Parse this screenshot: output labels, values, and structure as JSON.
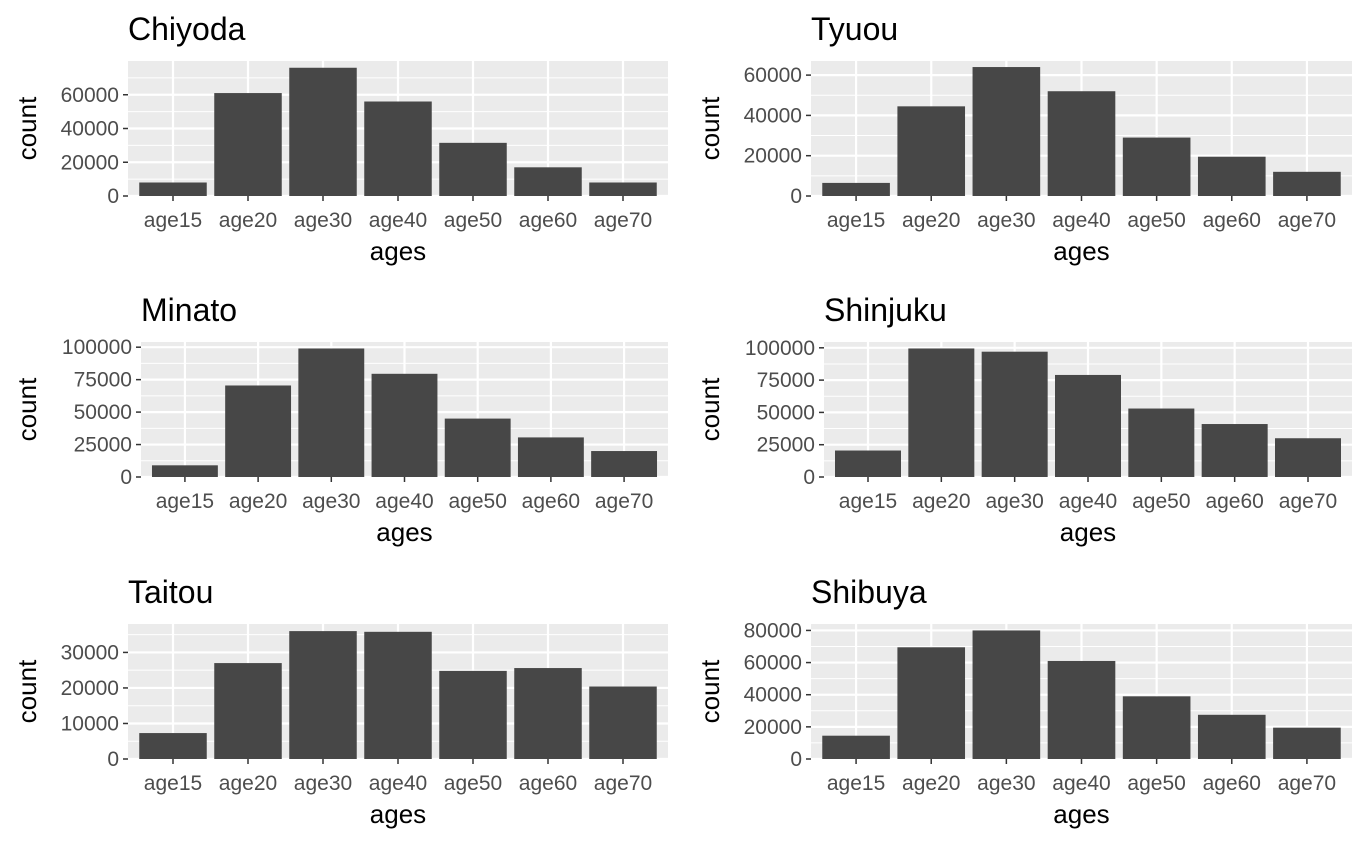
{
  "chart_data": [
    {
      "type": "bar",
      "title": "Chiyoda",
      "xlabel": "ages",
      "ylabel": "count",
      "categories": [
        "age15",
        "age20",
        "age30",
        "age40",
        "age50",
        "age60",
        "age70"
      ],
      "values": [
        8000,
        61000,
        76000,
        56000,
        31500,
        17000,
        8000
      ],
      "ylim": [
        0,
        80000
      ],
      "yticks": [
        0,
        20000,
        40000,
        60000
      ],
      "ytick_labels": [
        "0",
        "20000",
        "40000",
        "60000"
      ]
    },
    {
      "type": "bar",
      "title": "Tyuou",
      "xlabel": "ages",
      "ylabel": "count",
      "categories": [
        "age15",
        "age20",
        "age30",
        "age40",
        "age50",
        "age60",
        "age70"
      ],
      "values": [
        6500,
        44500,
        64000,
        52000,
        29000,
        19500,
        12000
      ],
      "ylim": [
        0,
        67000
      ],
      "yticks": [
        0,
        20000,
        40000,
        60000
      ],
      "ytick_labels": [
        "0",
        "20000",
        "40000",
        "60000"
      ]
    },
    {
      "type": "bar",
      "title": "Minato",
      "xlabel": "ages",
      "ylabel": "count",
      "categories": [
        "age15",
        "age20",
        "age30",
        "age40",
        "age50",
        "age60",
        "age70"
      ],
      "values": [
        9000,
        70500,
        99000,
        79500,
        45000,
        30500,
        20000
      ],
      "ylim": [
        0,
        104000
      ],
      "yticks": [
        0,
        25000,
        50000,
        75000,
        100000
      ],
      "ytick_labels": [
        "0",
        "25000",
        "50000",
        "75000",
        "100000"
      ]
    },
    {
      "type": "bar",
      "title": "Shinjuku",
      "xlabel": "ages",
      "ylabel": "count",
      "categories": [
        "age15",
        "age20",
        "age30",
        "age40",
        "age50",
        "age60",
        "age70"
      ],
      "values": [
        20500,
        99500,
        97000,
        79000,
        53000,
        41000,
        30000
      ],
      "ylim": [
        0,
        104500
      ],
      "yticks": [
        0,
        25000,
        50000,
        75000,
        100000
      ],
      "ytick_labels": [
        "0",
        "25000",
        "50000",
        "75000",
        "100000"
      ]
    },
    {
      "type": "bar",
      "title": "Taitou",
      "xlabel": "ages",
      "ylabel": "count",
      "categories": [
        "age15",
        "age20",
        "age30",
        "age40",
        "age50",
        "age60",
        "age70"
      ],
      "values": [
        7300,
        27000,
        36000,
        35800,
        24800,
        25600,
        20400
      ],
      "ylim": [
        0,
        38000
      ],
      "yticks": [
        0,
        10000,
        20000,
        30000
      ],
      "ytick_labels": [
        "0",
        "10000",
        "20000",
        "30000"
      ]
    },
    {
      "type": "bar",
      "title": "Shibuya",
      "xlabel": "ages",
      "ylabel": "count",
      "categories": [
        "age15",
        "age20",
        "age30",
        "age40",
        "age50",
        "age60",
        "age70"
      ],
      "values": [
        14500,
        69500,
        80000,
        61000,
        39000,
        27500,
        19500
      ],
      "ylim": [
        0,
        84000
      ],
      "yticks": [
        0,
        20000,
        40000,
        60000,
        80000
      ],
      "ytick_labels": [
        "0",
        "20000",
        "40000",
        "60000",
        "80000"
      ]
    }
  ],
  "colors": {
    "panel_background": "#ebebeb",
    "grid_line": "#ffffff",
    "bar_fill": "#474747",
    "tick_text": "#4d4d4d",
    "tick_mark": "#333333",
    "title_text": "#000000"
  }
}
